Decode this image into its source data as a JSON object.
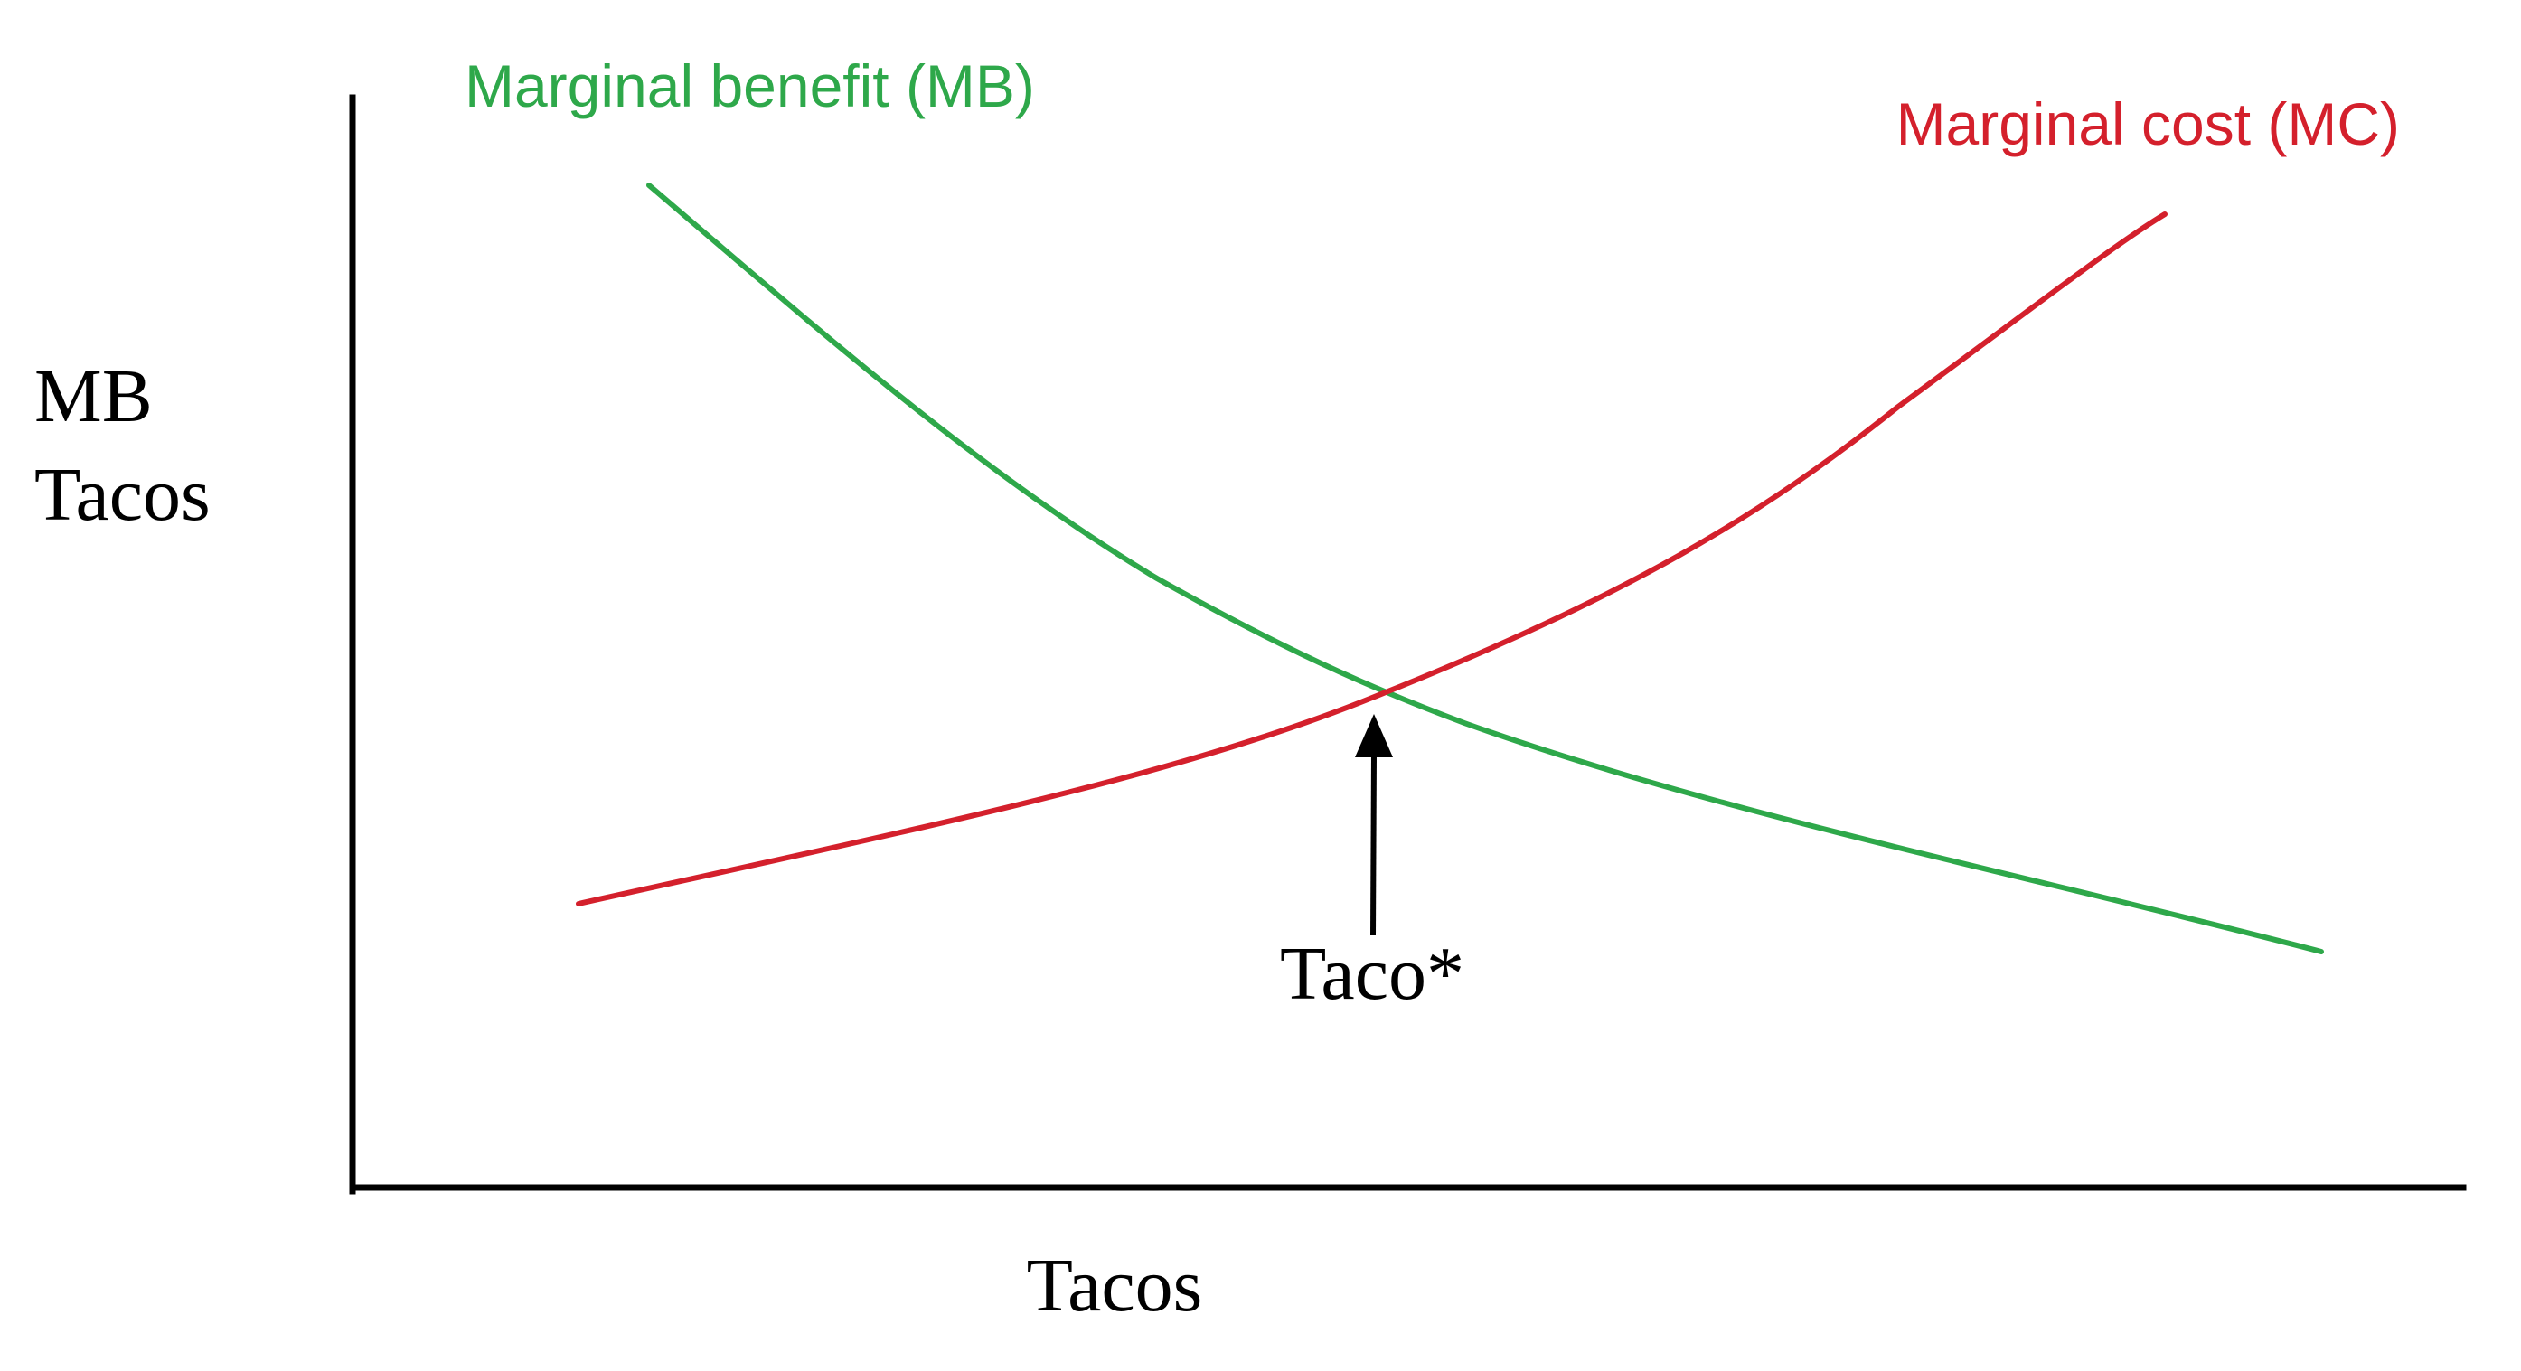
{
  "diagram": {
    "y_axis_label_line1": "MB",
    "y_axis_label_line2": "Tacos",
    "x_axis_label": "Tacos",
    "optimum_label": "Taco*",
    "curves": {
      "marginal_benefit": {
        "label": "Marginal benefit (MB)",
        "color": "#2ea84a"
      },
      "marginal_cost": {
        "label": "Marginal cost (MC)",
        "color": "#d4202c"
      }
    },
    "axis_color": "#000000",
    "arrow_color": "#000000"
  }
}
